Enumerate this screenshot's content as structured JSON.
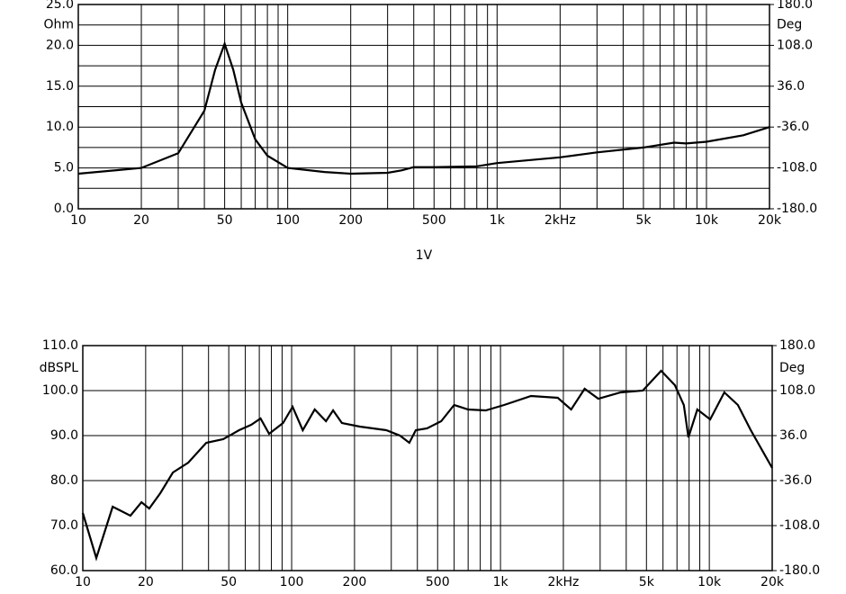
{
  "chart_data": [
    {
      "type": "line",
      "xlabel": "1V",
      "ylabel": "Ohm",
      "y2label": "Deg",
      "xscale": "log",
      "grid": true,
      "xlim": [
        10,
        20000
      ],
      "ylim": [
        0,
        25
      ],
      "y2lim": [
        -180,
        180
      ],
      "xticks": [
        10,
        20,
        50,
        100,
        200,
        500,
        {
          "value": 1000,
          "label": "1k"
        },
        {
          "value": 2000,
          "label": "2kHz"
        },
        {
          "value": 5000,
          "label": "5k"
        },
        {
          "value": 10000,
          "label": "10k"
        },
        {
          "value": 20000,
          "label": "20k"
        }
      ],
      "xminor": [
        30,
        40,
        60,
        70,
        80,
        90,
        300,
        400,
        600,
        700,
        800,
        900,
        3000,
        4000,
        6000,
        7000,
        8000,
        9000
      ],
      "yticks": [
        {
          "value": 0,
          "label": "0.0"
        },
        {
          "value": 5,
          "label": "5.0"
        },
        {
          "value": 10,
          "label": "10.0"
        },
        {
          "value": 15,
          "label": "15.0"
        },
        {
          "value": 20,
          "label": "20.0"
        },
        {
          "value": 25,
          "label": "25.0"
        }
      ],
      "yminor": [
        2.5,
        7.5,
        12.5,
        17.5,
        22.5
      ],
      "y2ticks": [
        {
          "value": 180,
          "label": "180.0"
        },
        {
          "value": 108,
          "label": "108.0"
        },
        {
          "value": 36,
          "label": "36.0"
        },
        {
          "value": -36,
          "label": "-36.0"
        },
        {
          "value": -108,
          "label": "-108.0"
        },
        {
          "value": -180,
          "label": "-180.0"
        }
      ],
      "series": [
        {
          "color": "#000000",
          "x": [
            10,
            20,
            30,
            40,
            45,
            50,
            55,
            60,
            70,
            80,
            100,
            150,
            200,
            300,
            350,
            400,
            500,
            800,
            1000,
            2000,
            3000,
            5000,
            7000,
            8000,
            10000,
            15000,
            20000
          ],
          "values": [
            4.3,
            5.0,
            6.8,
            12,
            17,
            20.2,
            17,
            13,
            8.5,
            6.5,
            5.0,
            4.5,
            4.3,
            4.4,
            4.7,
            5.1,
            5.1,
            5.2,
            5.6,
            6.3,
            6.9,
            7.5,
            8.1,
            8.0,
            8.2,
            9.0,
            10.0
          ]
        }
      ]
    },
    {
      "type": "line",
      "ylabel": "dBSPL",
      "y2label": "Deg",
      "xscale": "log",
      "grid": true,
      "xlim": [
        10,
        20000
      ],
      "ylim": [
        60,
        110
      ],
      "y2lim": [
        -180,
        180
      ],
      "xticks": [
        10,
        20,
        50,
        100,
        200,
        500,
        {
          "value": 1000,
          "label": "1k"
        },
        {
          "value": 2000,
          "label": "2kHz"
        },
        {
          "value": 5000,
          "label": "5k"
        },
        {
          "value": 10000,
          "label": "10k"
        },
        {
          "value": 20000,
          "label": "20k"
        }
      ],
      "xminor": [
        30,
        40,
        60,
        70,
        80,
        90,
        300,
        400,
        600,
        700,
        800,
        900,
        3000,
        4000,
        6000,
        7000,
        8000,
        9000
      ],
      "yticks": [
        {
          "value": 60,
          "label": "60.0"
        },
        {
          "value": 70,
          "label": "70.0"
        },
        {
          "value": 80,
          "label": "80.0"
        },
        {
          "value": 90,
          "label": "90.0"
        },
        {
          "value": 100,
          "label": "100.0"
        },
        {
          "value": 110,
          "label": "110.0"
        }
      ],
      "y2ticks": [
        {
          "value": 180,
          "label": "180.0"
        },
        {
          "value": 108,
          "label": "108.0"
        },
        {
          "value": 36,
          "label": "36.0"
        },
        {
          "value": -36,
          "label": "-36.0"
        },
        {
          "value": -108,
          "label": "-108.0"
        },
        {
          "value": -180,
          "label": "-180.0"
        }
      ],
      "series": [
        {
          "color": "#000000",
          "x": [
            10,
            11.6,
            13.9,
            16.9,
            19.1,
            20.8,
            23.5,
            27,
            32,
            39,
            47,
            56,
            64,
            71,
            78,
            91,
            101,
            113,
            129,
            146,
            158,
            174,
            212,
            284,
            330,
            366,
            393,
            445,
            520,
            600,
            700,
            850,
            1040,
            1400,
            1880,
            2180,
            2530,
            2940,
            3760,
            4800,
            5880,
            6840,
            7550,
            7940,
            8760,
            10100,
            11800,
            13700,
            15800,
            20000
          ],
          "values": [
            72.8,
            62.8,
            74.2,
            72.2,
            75.2,
            73.8,
            77.2,
            81.8,
            84,
            88.4,
            89.2,
            91.2,
            92.4,
            93.8,
            90.4,
            92.8,
            96.4,
            91.2,
            95.8,
            93.2,
            95.6,
            92.8,
            92,
            91.2,
            90,
            88.4,
            91.2,
            91.6,
            93.2,
            96.8,
            95.8,
            95.6,
            96.8,
            98.8,
            98.4,
            95.8,
            100.4,
            98.2,
            99.6,
            100,
            104.4,
            101.2,
            96.8,
            89.6,
            95.8,
            93.6,
            99.6,
            96.8,
            91.2,
            82.8
          ]
        }
      ]
    }
  ]
}
